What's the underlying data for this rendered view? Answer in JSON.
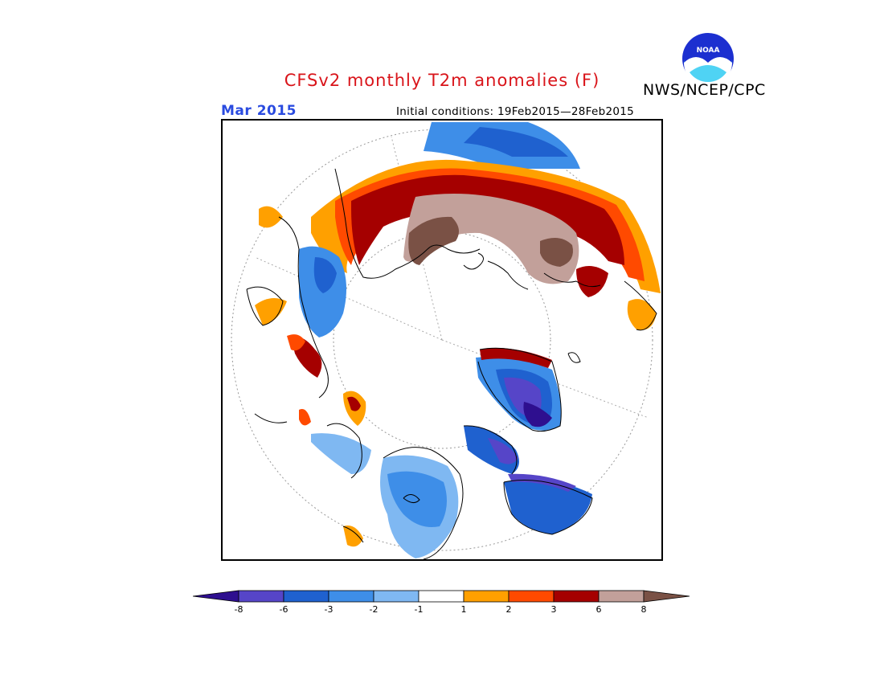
{
  "title": "CFSv2 monthly T2m anomalies (F)",
  "org": "NWS/NCEP/CPC",
  "logo_text": "NOAA",
  "month": "Mar 2015",
  "initial_conditions": "Initial conditions: 19Feb2015—28Feb2015",
  "colorbar": {
    "bins": [
      {
        "color": "#2e0f8f"
      },
      {
        "color": "#5645c8"
      },
      {
        "color": "#1f61cf"
      },
      {
        "color": "#3e8ee8"
      },
      {
        "color": "#7fb8f2"
      },
      {
        "color": "#ffffff"
      },
      {
        "color": "#ffa000"
      },
      {
        "color": "#ff4a00"
      },
      {
        "color": "#a50000"
      },
      {
        "color": "#c2a09a"
      },
      {
        "color": "#7a5145"
      }
    ],
    "labels": [
      "-8",
      "-6",
      "-3",
      "-2",
      "-1",
      "1",
      "2",
      "3",
      "6",
      "8"
    ]
  },
  "colors": {
    "title": "#d9141a",
    "month": "#2a4be0",
    "coast": "#000000"
  }
}
